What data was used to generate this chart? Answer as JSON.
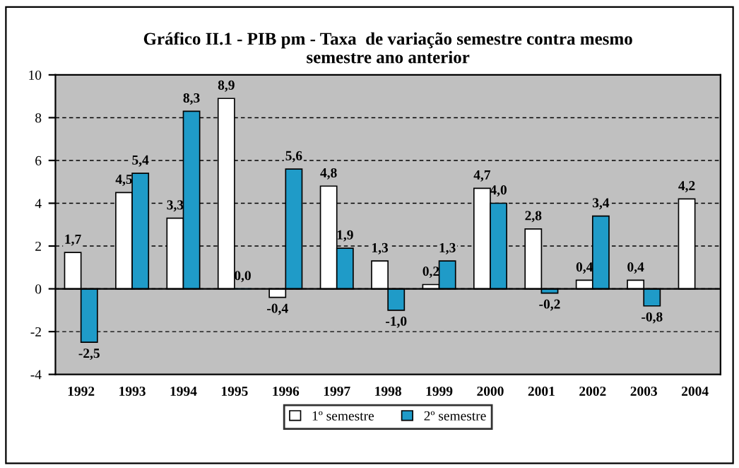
{
  "chart_data": {
    "type": "bar",
    "title": "Gráfico II.1 - PIB pm - Taxa  de variação semestre contra mesmo\nsemestre ano anterior",
    "categories": [
      "1992",
      "1993",
      "1994",
      "1995",
      "1996",
      "1997",
      "1998",
      "1999",
      "2000",
      "2001",
      "2002",
      "2003",
      "2004"
    ],
    "series": [
      {
        "name": "1º semestre",
        "color": "#ffffff",
        "values": [
          1.7,
          4.5,
          3.3,
          8.9,
          -0.4,
          4.8,
          1.3,
          0.2,
          4.7,
          2.8,
          0.4,
          0.4,
          4.2
        ],
        "value_labels": [
          "1,7",
          "4,5",
          "3,3",
          "8,9",
          "-0,4",
          "4,8",
          "1,3",
          "0,2",
          "4,7",
          "2,8",
          "0,4",
          "0,4",
          "4,2"
        ]
      },
      {
        "name": "2º semestre",
        "color": "#1f9bc8",
        "values": [
          -2.5,
          5.4,
          8.3,
          0.0,
          5.6,
          1.9,
          -1.0,
          1.3,
          4.0,
          -0.2,
          3.4,
          -0.8,
          null
        ],
        "value_labels": [
          "-2,5",
          "5,4",
          "8,3",
          "0,0",
          "5,6",
          "1,9",
          "-1,0",
          "1,3",
          "4,0",
          "-0,2",
          "3,4",
          "-0,8",
          null
        ]
      }
    ],
    "ylim": [
      -4,
      10
    ],
    "yticks": [
      -4,
      -2,
      0,
      2,
      4,
      6,
      8,
      10
    ],
    "grid": "y",
    "legend": "bottom"
  }
}
